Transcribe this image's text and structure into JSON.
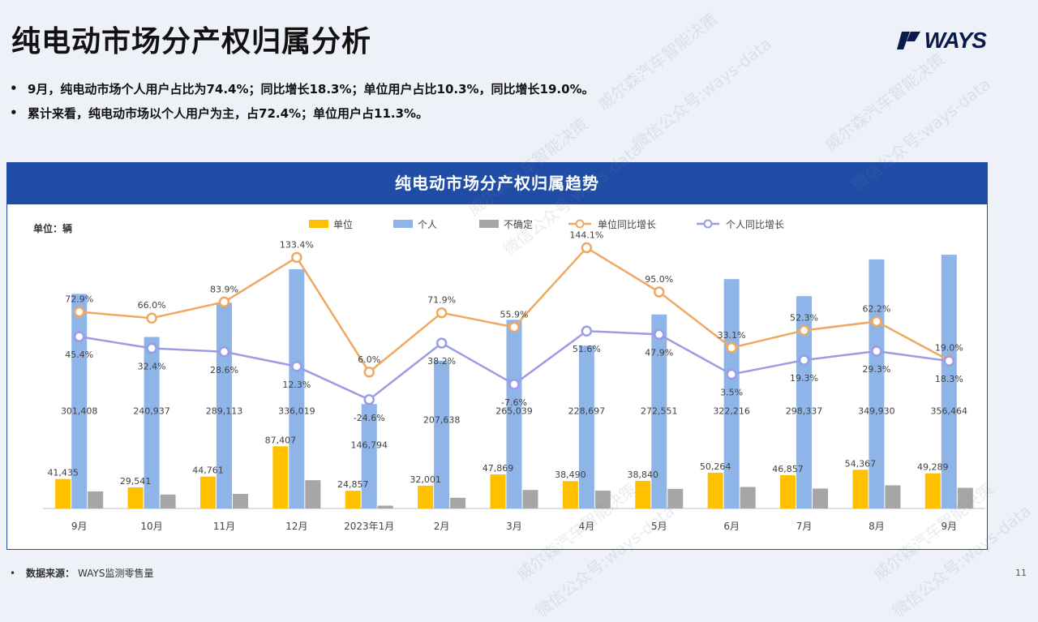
{
  "page": {
    "title": "纯电动市场分产权归属分析",
    "logo_text": "WAYS",
    "bullets": [
      "9月，纯电动市场个人用户占比为74.4%；同比增长18.3%；单位用户占比10.3%，同比增长19.0%。",
      "累计来看，纯电动市场以个人用户为主，占72.4%；单位用户占11.3%。"
    ],
    "chart_title": "纯电动市场分产权归属趋势",
    "unit": "单位：辆",
    "source_label": "数据来源：",
    "source_value": "WAYS监测零售量",
    "page_number": "11",
    "watermarks": [
      "威尔森汽车智能决策",
      "微信公众号:ways-data"
    ]
  },
  "chart_data": {
    "type": "bar",
    "title": "纯电动市场分产权归属趋势",
    "categories": [
      "9月",
      "10月",
      "11月",
      "12月",
      "2023年1月",
      "2月",
      "3月",
      "4月",
      "5月",
      "6月",
      "7月",
      "8月",
      "9月"
    ],
    "legend_placement": "top",
    "series": [
      {
        "name": "单位",
        "type": "bar",
        "color": "#ffc000",
        "values": [
          41435,
          29541,
          44761,
          87407,
          24857,
          32001,
          47869,
          38490,
          38840,
          50264,
          46857,
          54367,
          49289
        ]
      },
      {
        "name": "个人",
        "type": "bar",
        "color": "#8fb4e8",
        "values": [
          301408,
          240937,
          289113,
          336019,
          146794,
          207638,
          265039,
          228697,
          272551,
          322216,
          298337,
          349930,
          356464
        ]
      },
      {
        "name": "不确定",
        "type": "bar",
        "color": "#a6a6a6",
        "values": [
          24000,
          19500,
          20500,
          39700,
          4000,
          15000,
          26000,
          25000,
          27500,
          30200,
          28000,
          32500,
          29000
        ]
      },
      {
        "name": "单位同比增长",
        "type": "line",
        "color": "#f0a860",
        "values": [
          72.9,
          66.0,
          83.9,
          133.4,
          6.0,
          71.9,
          55.9,
          144.1,
          95.0,
          33.1,
          52.3,
          62.2,
          19.0
        ]
      },
      {
        "name": "个人同比增长",
        "type": "line",
        "color": "#9b9be6",
        "values": [
          45.4,
          32.4,
          28.6,
          12.3,
          -24.6,
          38.2,
          -7.6,
          51.6,
          47.9,
          3.5,
          19.3,
          29.3,
          18.3
        ]
      }
    ],
    "bar_labels": {
      "单位": [
        "41,435",
        "29,541",
        "44,761",
        "87,407",
        "24,857",
        "32,001",
        "47,869",
        "38,490",
        "38,840",
        "50,264",
        "46,857",
        "54,367",
        "49,289"
      ],
      "个人": [
        "301,408",
        "240,937",
        "289,113",
        "336,019",
        "146,794",
        "207,638",
        "265,039",
        "228,697",
        "272,551",
        "322,216",
        "298,337",
        "349,930",
        "356,464"
      ]
    },
    "line_labels": {
      "单位同比增长": [
        "72.9%",
        "66.0%",
        "83.9%",
        "133.4%",
        "6.0%",
        "71.9%",
        "55.9%",
        "144.1%",
        "95.0%",
        "33.1%",
        "52.3%",
        "62.2%",
        "19.0%"
      ],
      "个人同比增长": [
        "45.4%",
        "32.4%",
        "28.6%",
        "12.3%",
        "-24.6%",
        "38.2%",
        "-7.6%",
        "51.6%",
        "47.9%",
        "3.5%",
        "19.3%",
        "29.3%",
        "18.3%"
      ]
    },
    "grid": false
  }
}
